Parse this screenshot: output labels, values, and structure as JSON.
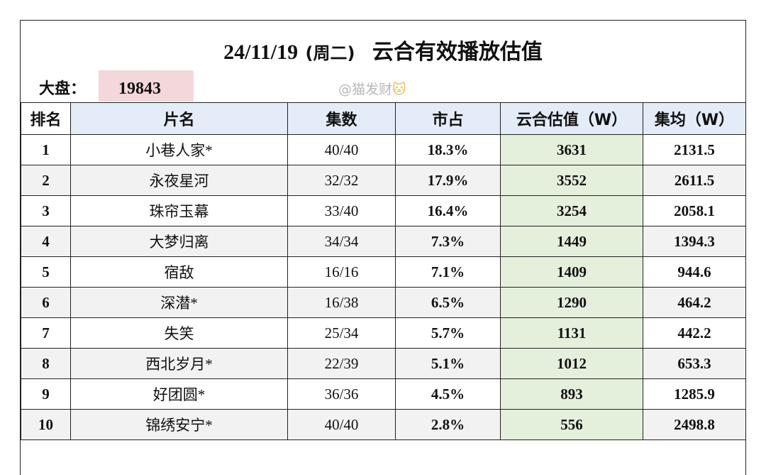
{
  "header": {
    "date": "24/11/19",
    "weekday": "(周二)",
    "title": "云合有效播放估值",
    "dapan_label": "大盘：",
    "dapan_value": "19843",
    "watermark": "@猫发财",
    "watermark_emoji": "🐱"
  },
  "table": {
    "columns": [
      "排名",
      "片名",
      "集数",
      "市占",
      "云合估值（W）",
      "集均（W）"
    ],
    "rows": [
      {
        "rank": "1",
        "title": "小巷人家*",
        "episodes": "40/40",
        "share": "18.3%",
        "estimate": "3631",
        "avg": "2131.5"
      },
      {
        "rank": "2",
        "title": "永夜星河",
        "episodes": "32/32",
        "share": "17.9%",
        "estimate": "3552",
        "avg": "2611.5"
      },
      {
        "rank": "3",
        "title": "珠帘玉幕",
        "episodes": "33/40",
        "share": "16.4%",
        "estimate": "3254",
        "avg": "2058.1"
      },
      {
        "rank": "4",
        "title": "大梦归离",
        "episodes": "34/34",
        "share": "7.3%",
        "estimate": "1449",
        "avg": "1394.3"
      },
      {
        "rank": "5",
        "title": "宿敌",
        "episodes": "16/16",
        "share": "7.1%",
        "estimate": "1409",
        "avg": "944.6"
      },
      {
        "rank": "6",
        "title": "深潜*",
        "episodes": "16/38",
        "share": "6.5%",
        "estimate": "1290",
        "avg": "464.2"
      },
      {
        "rank": "7",
        "title": "失笑",
        "episodes": "25/34",
        "share": "5.7%",
        "estimate": "1131",
        "avg": "442.2"
      },
      {
        "rank": "8",
        "title": "西北岁月*",
        "episodes": "22/39",
        "share": "5.1%",
        "estimate": "1012",
        "avg": "653.3"
      },
      {
        "rank": "9",
        "title": "好团圆*",
        "episodes": "36/36",
        "share": "4.5%",
        "estimate": "893",
        "avg": "1285.9"
      },
      {
        "rank": "10",
        "title": "锦绣安宁*",
        "episodes": "40/40",
        "share": "2.8%",
        "estimate": "556",
        "avg": "2498.8"
      }
    ]
  },
  "colors": {
    "header_bg": "#e3ecf7",
    "estimate_bg": "#e4efdc",
    "dapan_bg": "#f4d7db",
    "alt_row_bg": "#f2f2f2"
  }
}
